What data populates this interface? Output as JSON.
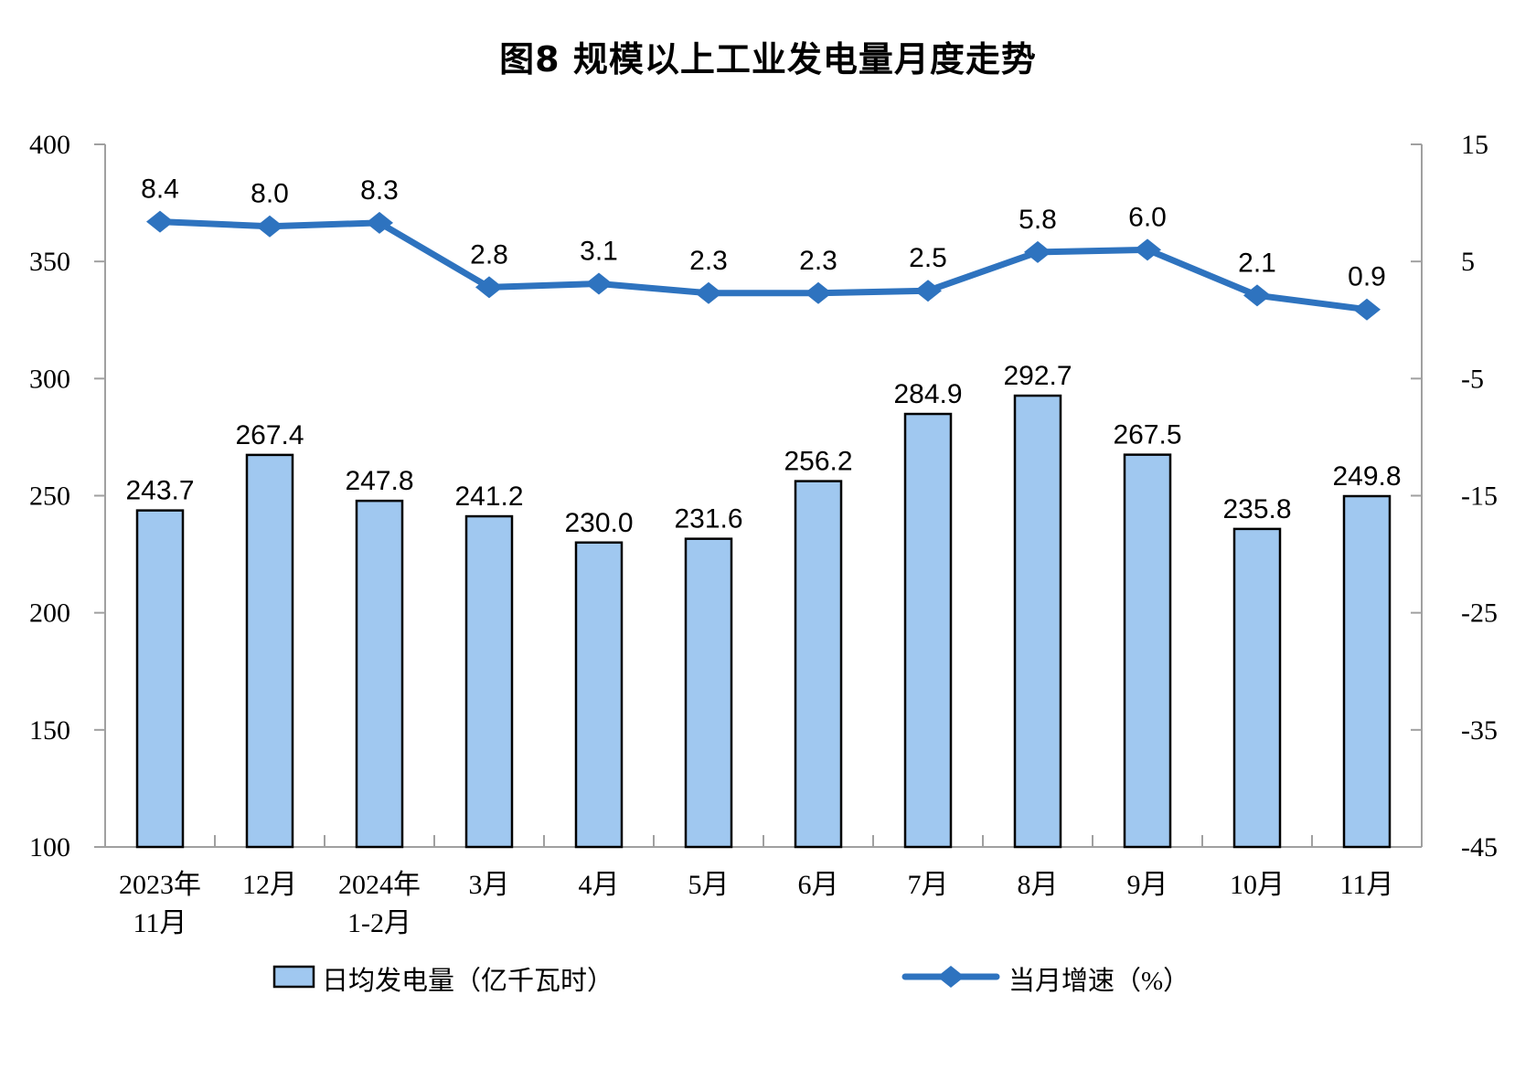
{
  "chart_data": {
    "type": "bar",
    "combo": "bar+line",
    "title": "图8 规模以上工业发电量月度走势",
    "categories": [
      "2023年\n11月",
      "12月",
      "2024年\n1-2月",
      "3月",
      "4月",
      "5月",
      "6月",
      "7月",
      "8月",
      "9月",
      "10月",
      "11月"
    ],
    "series": [
      {
        "name": "日均发电量（亿千瓦时）",
        "type": "bar",
        "axis": "left",
        "values": [
          243.7,
          267.4,
          247.8,
          241.2,
          230.0,
          231.6,
          256.2,
          284.9,
          292.7,
          267.5,
          235.8,
          249.8
        ]
      },
      {
        "name": "当月增速（%）",
        "type": "line",
        "axis": "right",
        "values": [
          8.4,
          8.0,
          8.3,
          2.8,
          3.1,
          2.3,
          2.3,
          2.5,
          5.8,
          6.0,
          2.1,
          0.9
        ]
      }
    ],
    "left_axis": {
      "min": 100,
      "max": 400,
      "step": 50,
      "tick_labels": [
        "400",
        "350",
        "300",
        "250",
        "200",
        "150",
        "100"
      ]
    },
    "right_axis": {
      "min": -45,
      "max": 15,
      "step": 10,
      "tick_labels": [
        "15",
        "5",
        "-5",
        "-15",
        "-25",
        "-35",
        "-45"
      ]
    },
    "grid": false,
    "legend_position": "bottom",
    "colors": {
      "bar_fill": "#A0C8F0",
      "bar_border": "#000000",
      "line": "#2E73BF",
      "axis": "#A0A0A0",
      "text": "#000000"
    }
  }
}
